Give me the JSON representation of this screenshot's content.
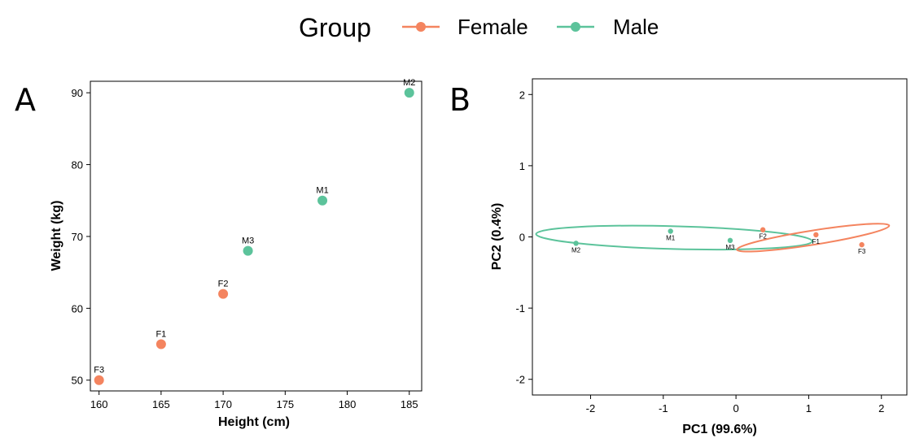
{
  "legend": {
    "title": "Group",
    "entries": [
      {
        "label": "Female",
        "color": "#F4845F"
      },
      {
        "label": "Male",
        "color": "#5CC39B"
      }
    ]
  },
  "chart_data": [
    {
      "panel": "A",
      "type": "scatter",
      "xlabel": "Height (cm)",
      "ylabel": "Weight (kg)",
      "xlim": [
        159.3,
        186
      ],
      "ylim": [
        48.5,
        91.6
      ],
      "xticks": [
        160,
        165,
        170,
        175,
        180,
        185
      ],
      "yticks": [
        50,
        60,
        70,
        80,
        90
      ],
      "points": [
        {
          "label": "F3",
          "group": "Female",
          "x": 160,
          "y": 50
        },
        {
          "label": "F1",
          "group": "Female",
          "x": 165,
          "y": 55
        },
        {
          "label": "F2",
          "group": "Female",
          "x": 170,
          "y": 62
        },
        {
          "label": "M3",
          "group": "Male",
          "x": 172,
          "y": 68
        },
        {
          "label": "M1",
          "group": "Male",
          "x": 178,
          "y": 75
        },
        {
          "label": "M2",
          "group": "Male",
          "x": 185,
          "y": 90
        }
      ]
    },
    {
      "panel": "B",
      "type": "scatter",
      "xlabel": "PC1 (99.6%)",
      "ylabel": "PC2 (0.4%)",
      "xlim": [
        -2.8,
        2.35
      ],
      "ylim": [
        -2.22,
        2.22
      ],
      "xticks": [
        -2,
        -1,
        0,
        1,
        2
      ],
      "yticks": [
        -2,
        -1,
        0,
        1,
        2
      ],
      "points": [
        {
          "label": "M2",
          "group": "Male",
          "x": -2.2,
          "y": -0.09
        },
        {
          "label": "M1",
          "group": "Male",
          "x": -0.9,
          "y": 0.08
        },
        {
          "label": "M3",
          "group": "Male",
          "x": -0.08,
          "y": -0.05
        },
        {
          "label": "F2",
          "group": "Female",
          "x": 0.37,
          "y": 0.1
        },
        {
          "label": "F1",
          "group": "Female",
          "x": 1.1,
          "y": 0.03
        },
        {
          "label": "F3",
          "group": "Female",
          "x": 1.73,
          "y": -0.11
        }
      ],
      "ellipses": [
        {
          "group": "Male",
          "cx": -0.85,
          "cy": -0.01,
          "rx": 1.9,
          "ry": 0.16,
          "angle": 1.5
        },
        {
          "group": "Female",
          "cx": 1.06,
          "cy": -0.01,
          "rx": 1.06,
          "ry": 0.1,
          "angle": -9
        }
      ]
    }
  ]
}
